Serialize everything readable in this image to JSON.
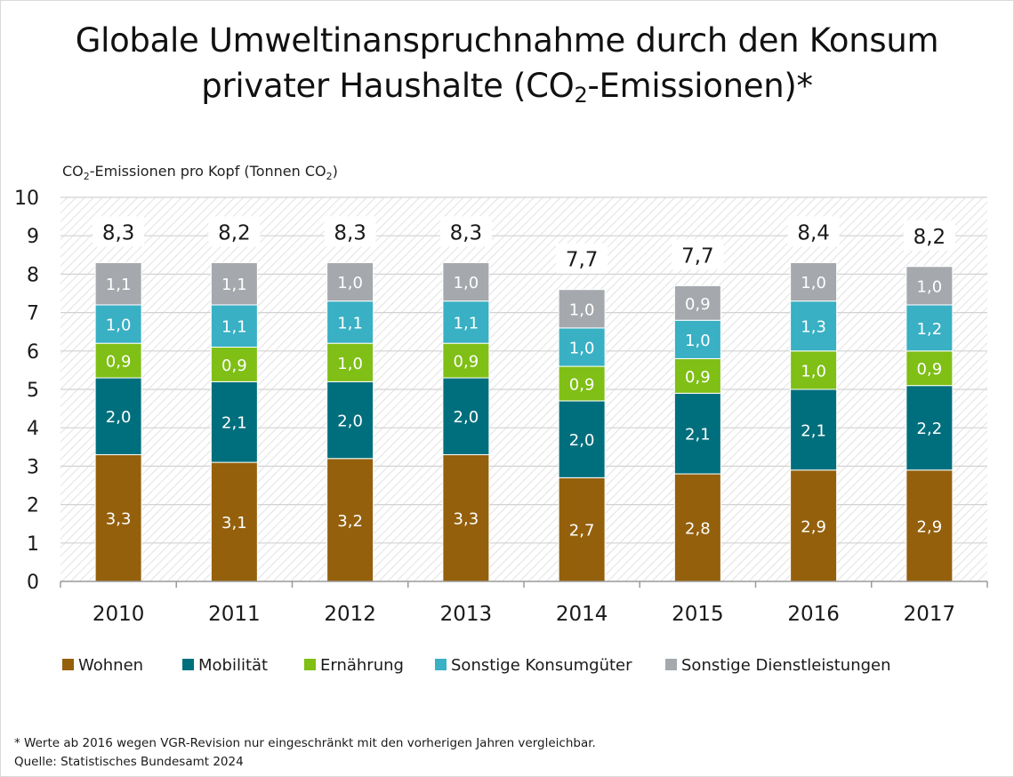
{
  "title_line1": "Globale Umweltinanspruchnahme durch den Konsum",
  "title_line2_pre": "privater Haushalte (CO",
  "title_line2_sub": "2",
  "title_line2_post": "-Emissionen)*",
  "footnote": "* Werte ab 2016 wegen VGR-Revision nur eingeschränkt mit den vorherigen Jahren vergleichbar.",
  "source": "Quelle: Statistisches Bundesamt 2024",
  "chart_data": {
    "type": "bar",
    "stacked": true,
    "ylabel_parts": [
      "CO",
      "2",
      "-Emissionen pro Kopf (Tonnen CO",
      "2",
      ")"
    ],
    "ylim": [
      0,
      10
    ],
    "yticks": [
      "0",
      "1",
      "2",
      "3",
      "4",
      "5",
      "6",
      "7",
      "8",
      "9",
      "10"
    ],
    "categories": [
      "2010",
      "2011",
      "2012",
      "2013",
      "2014",
      "2015",
      "2016",
      "2017"
    ],
    "totals": [
      8.3,
      8.2,
      8.3,
      8.3,
      7.7,
      7.7,
      8.4,
      8.2
    ],
    "total_labels": [
      "8,3",
      "8,2",
      "8,3",
      "8,3",
      "7,7",
      "7,7",
      "8,4",
      "8,2"
    ],
    "series": [
      {
        "name": "Wohnen",
        "color": "#94600c",
        "values": [
          3.3,
          3.1,
          3.2,
          3.3,
          2.7,
          2.8,
          2.9,
          2.9
        ],
        "labels": [
          "3,3",
          "3,1",
          "3,2",
          "3,3",
          "2,7",
          "2,8",
          "2,9",
          "2,9"
        ]
      },
      {
        "name": "Mobilität",
        "color": "#006f7d",
        "values": [
          2.0,
          2.1,
          2.0,
          2.0,
          2.0,
          2.1,
          2.1,
          2.2
        ],
        "labels": [
          "2,0",
          "2,1",
          "2,0",
          "2,0",
          "2,0",
          "2,1",
          "2,1",
          "2,2"
        ]
      },
      {
        "name": "Ernährung",
        "color": "#7fbf16",
        "values": [
          0.9,
          0.9,
          1.0,
          0.9,
          0.9,
          0.9,
          1.0,
          0.9
        ],
        "labels": [
          "0,9",
          "0,9",
          "1,0",
          "0,9",
          "0,9",
          "0,9",
          "1,0",
          "0,9"
        ]
      },
      {
        "name": "Sonstige Konsumgüter",
        "color": "#39b0c4",
        "values": [
          1.0,
          1.1,
          1.1,
          1.1,
          1.0,
          1.0,
          1.3,
          1.2
        ],
        "labels": [
          "1,0",
          "1,1",
          "1,1",
          "1,1",
          "1,0",
          "1,0",
          "1,3",
          "1,2"
        ]
      },
      {
        "name": "Sonstige Dienstleistungen",
        "color": "#a5a9ad",
        "values": [
          1.1,
          1.1,
          1.0,
          1.0,
          1.0,
          0.9,
          1.0,
          1.0
        ],
        "labels": [
          "1,1",
          "1,1",
          "1,0",
          "1,0",
          "1,0",
          "0,9",
          "1,0",
          "1,0"
        ]
      }
    ],
    "legend_position": "bottom-left",
    "grid": true
  }
}
